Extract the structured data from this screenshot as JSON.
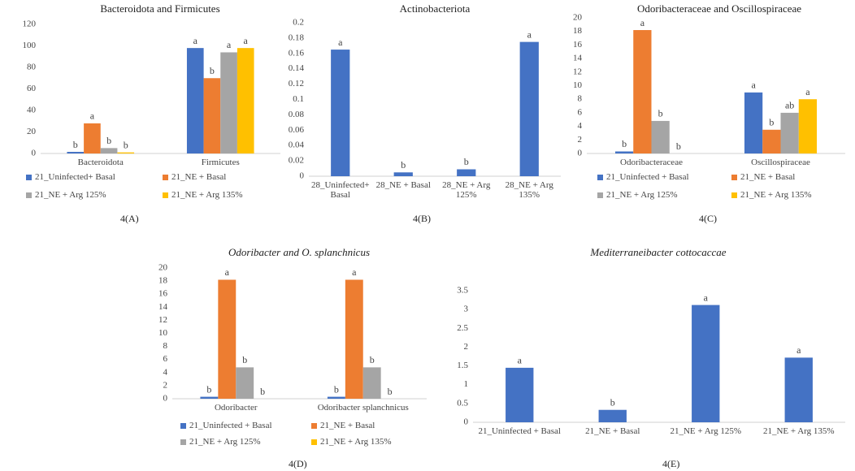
{
  "chart_data": [
    {
      "type": "bar",
      "title": "Bacteroidota  and Firmicutes",
      "panel_label": "4(A)",
      "categories": [
        "Bacteroidota",
        "Firmicutes"
      ],
      "series": [
        {
          "name": "21_Uninfected+ Basal",
          "color": "#4472c4",
          "values": [
            1.5,
            98
          ],
          "annotations": [
            "b",
            "a"
          ]
        },
        {
          "name": "21_NE + Basal",
          "color": "#ed7d31",
          "values": [
            28,
            70
          ],
          "annotations": [
            "a",
            "b"
          ]
        },
        {
          "name": "21_NE + Arg 125%",
          "color": "#a5a5a5",
          "values": [
            5,
            94
          ],
          "annotations": [
            "b",
            "a"
          ]
        },
        {
          "name": "21_NE + Arg 135%",
          "color": "#ffc000",
          "values": [
            1,
            98
          ],
          "annotations": [
            "b",
            "a"
          ]
        }
      ],
      "ylim": [
        0,
        120
      ],
      "yticks": [
        0,
        20,
        40,
        60,
        80,
        100,
        120
      ],
      "legend": "bottom"
    },
    {
      "type": "bar",
      "title": "Actinobacteriota",
      "panel_label": "4(B)",
      "categories": [
        "28_Uninfected+ Basal",
        "28_NE + Basal",
        "28_NE + Arg 125%",
        "28_NE + Arg 135%"
      ],
      "values": [
        0.165,
        0.005,
        0.009,
        0.175
      ],
      "annotations": [
        "a",
        "b",
        "b",
        "a"
      ],
      "color": "#4472c4",
      "ylim": [
        0,
        0.2
      ],
      "yticks": [
        0,
        0.02,
        0.04,
        0.06,
        0.08,
        0.1,
        0.12,
        0.14,
        0.16,
        0.18,
        0.2
      ]
    },
    {
      "type": "bar",
      "title": "Odoribacteraceae and Oscillospiraceae",
      "panel_label": "4(C)",
      "categories": [
        "Odoribacteraceae",
        "Oscillospiraceae"
      ],
      "series": [
        {
          "name": "21_Uninfected + Basal",
          "color": "#4472c4",
          "values": [
            0.3,
            9
          ],
          "annotations": [
            "b",
            "a"
          ]
        },
        {
          "name": "21_NE + Basal",
          "color": "#ed7d31",
          "values": [
            18.2,
            3.5
          ],
          "annotations": [
            "a",
            "b"
          ]
        },
        {
          "name": "21_NE + Arg 125%",
          "color": "#a5a5a5",
          "values": [
            4.8,
            6
          ],
          "annotations": [
            "b",
            "ab"
          ]
        },
        {
          "name": "21_NE + Arg 135%",
          "color": "#ffc000",
          "values": [
            0,
            8
          ],
          "annotations": [
            "b",
            "a"
          ]
        }
      ],
      "ylim": [
        0,
        20
      ],
      "yticks": [
        0,
        2,
        4,
        6,
        8,
        10,
        12,
        14,
        16,
        18,
        20
      ],
      "legend": "bottom"
    },
    {
      "type": "bar",
      "title": "Odoribacter and O. splanchnicus",
      "panel_label": "4(D)",
      "categories": [
        "Odoribacter",
        "Odoribacter splanchnicus"
      ],
      "series": [
        {
          "name": "21_Uninfected + Basal",
          "color": "#4472c4",
          "values": [
            0.3,
            0.3
          ],
          "annotations": [
            "b",
            "b"
          ]
        },
        {
          "name": "21_NE + Basal",
          "color": "#ed7d31",
          "values": [
            18.2,
            18.2
          ],
          "annotations": [
            "a",
            "a"
          ]
        },
        {
          "name": "21_NE + Arg 125%",
          "color": "#a5a5a5",
          "values": [
            4.8,
            4.8
          ],
          "annotations": [
            "b",
            "b"
          ]
        },
        {
          "name": "21_NE + Arg 135%",
          "color": "#ffc000",
          "values": [
            0,
            0
          ],
          "annotations": [
            "b",
            "b"
          ]
        }
      ],
      "ylim": [
        0,
        20
      ],
      "yticks": [
        0,
        2,
        4,
        6,
        8,
        10,
        12,
        14,
        16,
        18,
        20
      ],
      "legend": "bottom"
    },
    {
      "type": "bar",
      "title": "Mediterraneibacter cottocaccae",
      "panel_label": "4(E)",
      "categories": [
        "21_Uninfected + Basal",
        "21_NE + Basal",
        "21_NE + Arg 125%",
        "21_NE + Arg 135%"
      ],
      "values": [
        1.45,
        0.33,
        3.12,
        1.72
      ],
      "annotations": [
        "a",
        "b",
        "a",
        "a"
      ],
      "color": "#4472c4",
      "ylim": [
        0,
        3.5
      ],
      "yticks": [
        0,
        0.5,
        1,
        1.5,
        2,
        2.5,
        3,
        3.5
      ]
    }
  ]
}
